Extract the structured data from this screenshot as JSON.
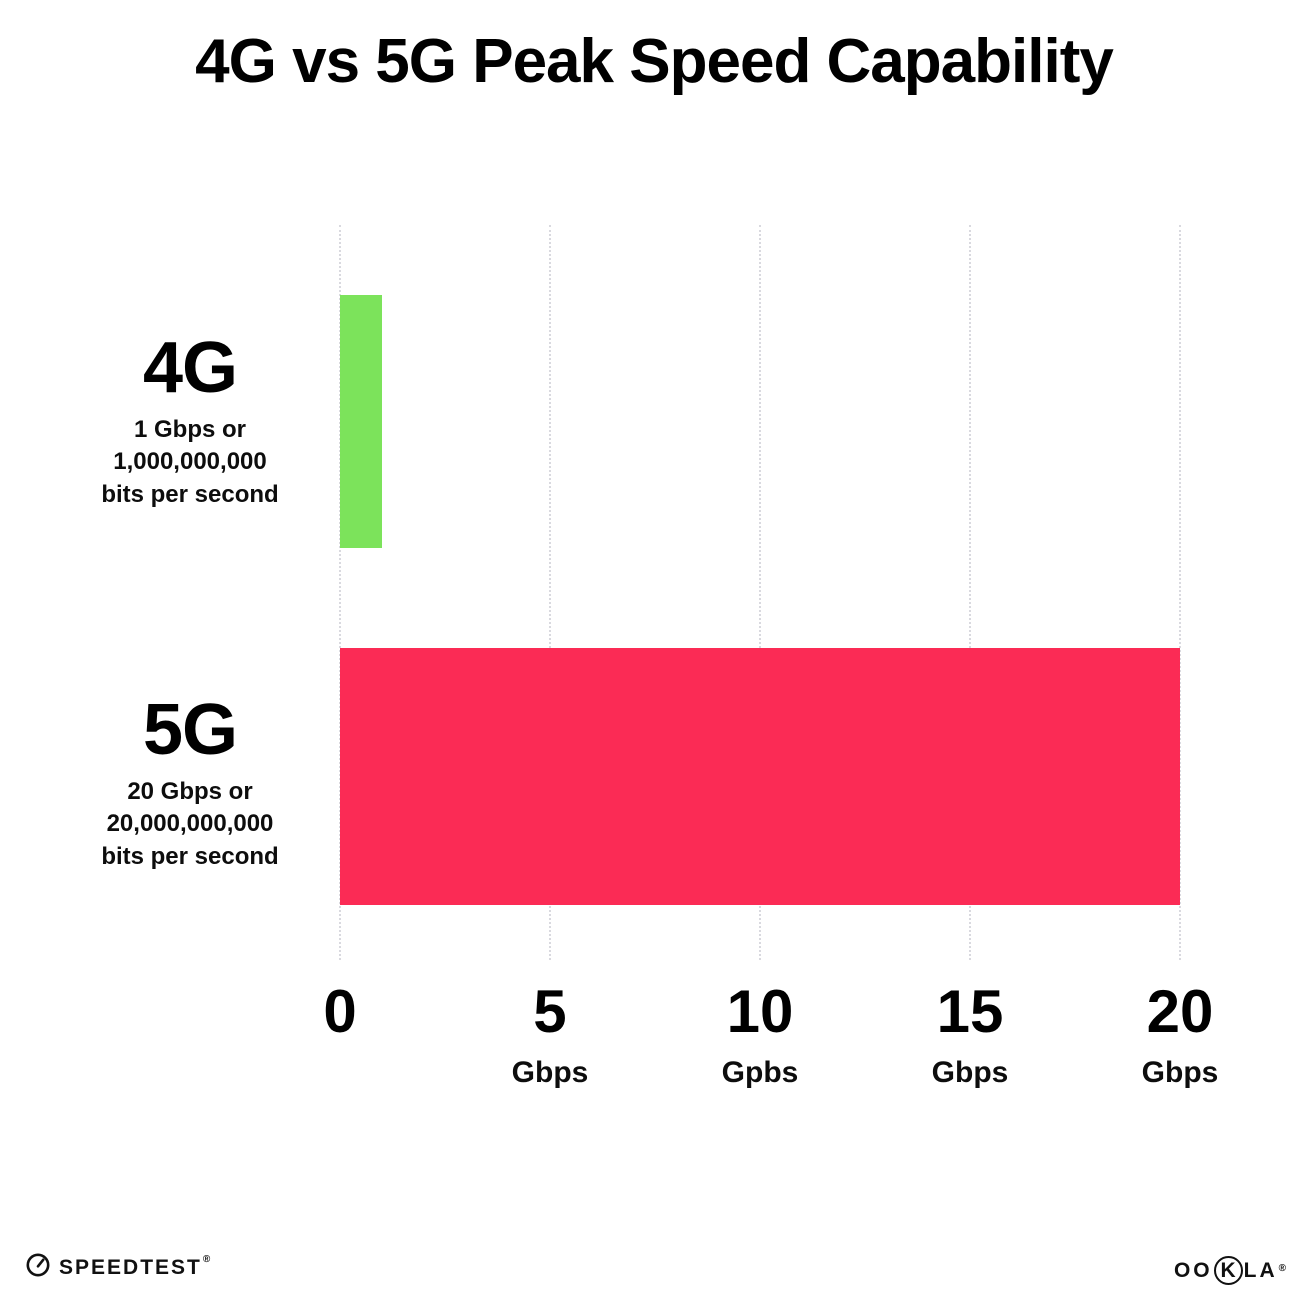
{
  "title": "4G vs 5G Peak Speed Capability",
  "colors": {
    "bar_4g": "#7ce35b",
    "bar_5g": "#fb2b55",
    "gridline": "#d9d9df",
    "text": "#0d0d0d"
  },
  "chart_data": {
    "type": "bar",
    "orientation": "horizontal",
    "title": "4G vs 5G Peak Speed Capability",
    "xlim": [
      0,
      20
    ],
    "grid": "vertical-dotted",
    "legend": "none",
    "rows": [
      {
        "label": "4G",
        "value": 1,
        "color": "#7ce35b",
        "desc_lines": [
          "1 Gbps or",
          "1,000,000,000",
          "bits per second"
        ]
      },
      {
        "label": "5G",
        "value": 20,
        "color": "#fb2b55",
        "desc_lines": [
          "20 Gbps or",
          "20,000,000,000",
          "bits per second"
        ]
      }
    ],
    "x_ticks": [
      {
        "value": 0,
        "label": "0",
        "unit": ""
      },
      {
        "value": 5,
        "label": "5",
        "unit": "Gbps"
      },
      {
        "value": 10,
        "label": "10",
        "unit": "Gpbs"
      },
      {
        "value": 15,
        "label": "15",
        "unit": "Gbps"
      },
      {
        "value": 20,
        "label": "20",
        "unit": "Gbps"
      }
    ]
  },
  "footer": {
    "speedtest": "SPEEDTEST",
    "speedtest_mark": "®",
    "ookla_parts": [
      "OO",
      "K",
      "LA"
    ],
    "ookla_mark": "®"
  }
}
